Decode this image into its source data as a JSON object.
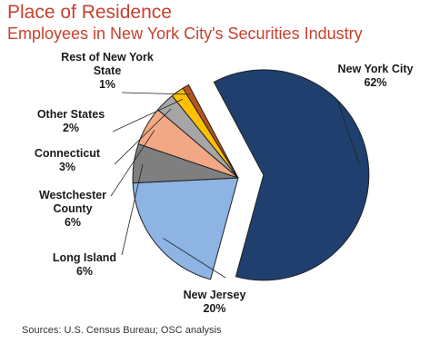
{
  "title": "Place of Residence",
  "subtitle": "Employees in New York City's Securities Industry",
  "source": "Sources: U.S. Census Bureau; OSC analysis",
  "chart_data": {
    "type": "pie",
    "slices": [
      {
        "label": [
          "New York City"
        ],
        "pct": "62%",
        "value": 62,
        "color": "#1f3f6e",
        "exploded": true
      },
      {
        "label": [
          "New Jersey"
        ],
        "pct": "20%",
        "value": 20,
        "color": "#8db4e2",
        "exploded": false
      },
      {
        "label": [
          "Long Island"
        ],
        "pct": "6%",
        "value": 6,
        "color": "#7f7f7f",
        "exploded": false
      },
      {
        "label": [
          "Westchester",
          "County"
        ],
        "pct": "6%",
        "value": 6,
        "color": "#f2a885",
        "exploded": false
      },
      {
        "label": [
          "Connecticut"
        ],
        "pct": "3%",
        "value": 3,
        "color": "#a6a6a6",
        "exploded": false
      },
      {
        "label": [
          "Other States"
        ],
        "pct": "2%",
        "value": 2,
        "color": "#ffc000",
        "exploded": false
      },
      {
        "label": [
          "Rest of New York",
          "State"
        ],
        "pct": "1%",
        "value": 1,
        "color": "#b8541f",
        "exploded": false
      }
    ]
  }
}
